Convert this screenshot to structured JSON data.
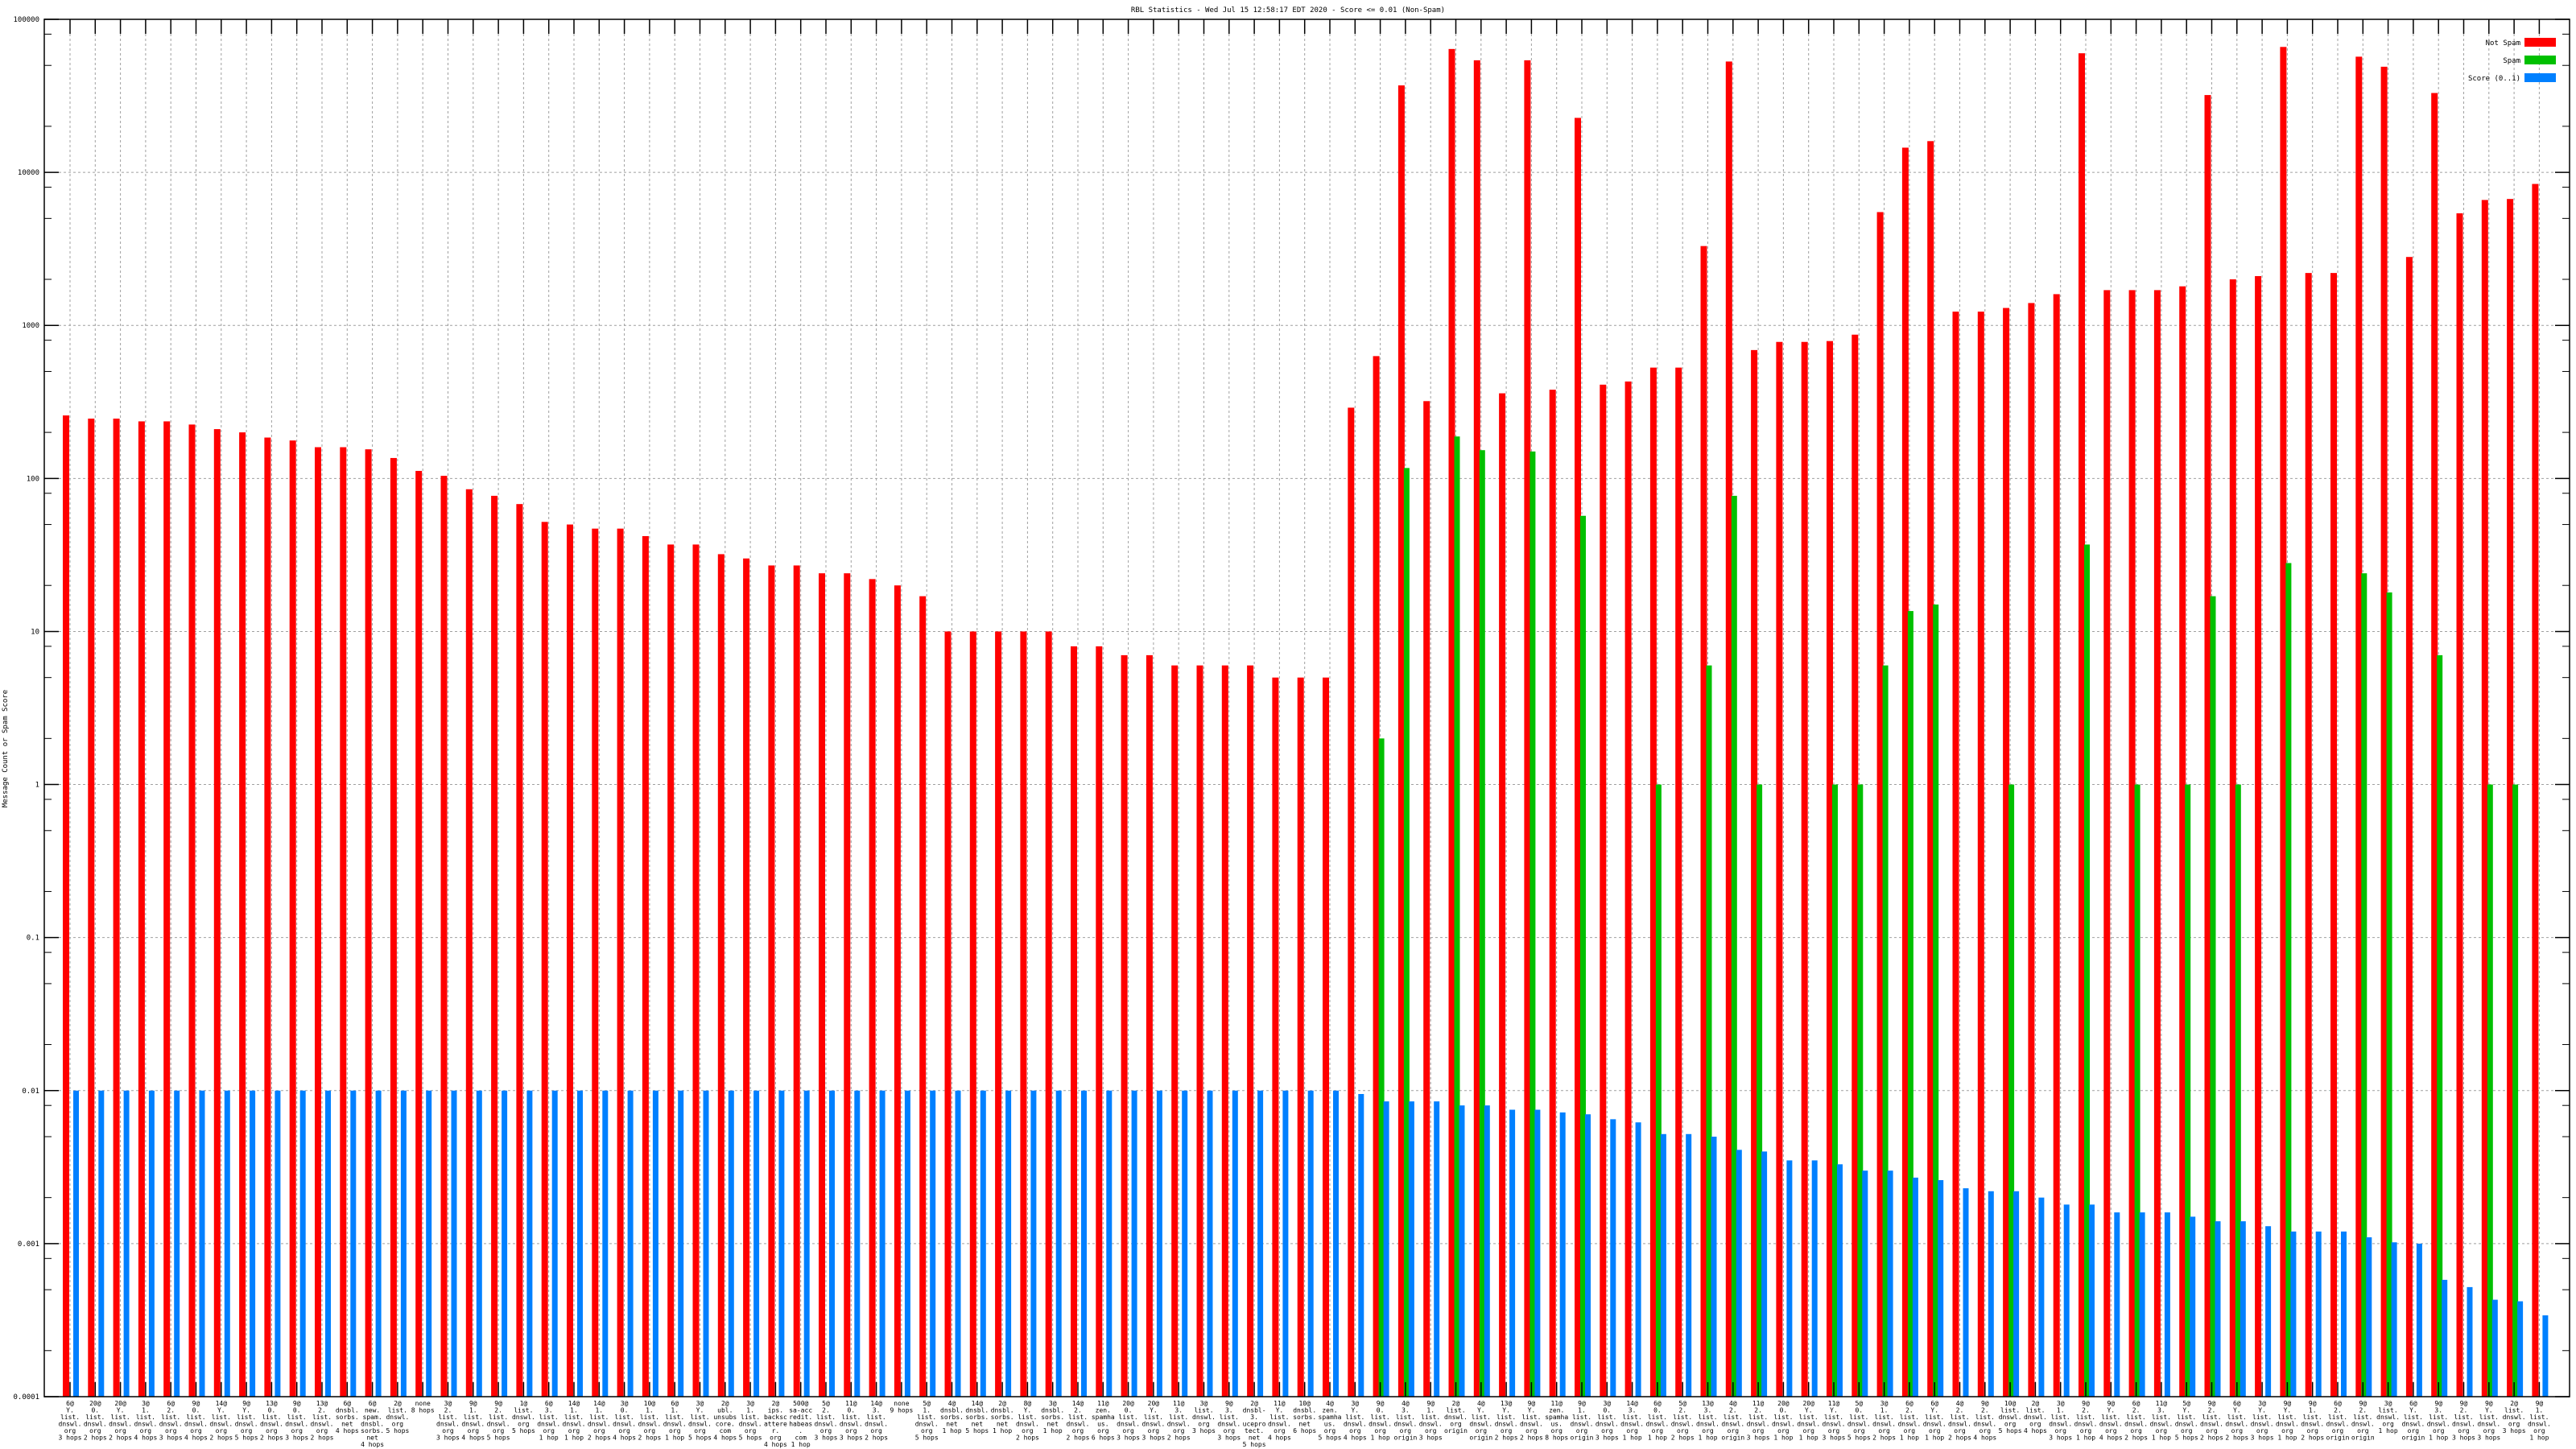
{
  "chart_data": {
    "type": "bar",
    "title": "RBL Statistics - Wed Jul 15 12:58:17 EDT 2020 - Score <= 0.01 (Non-Spam)",
    "xlabel": "",
    "ylabel": "Message Count or Spam Score",
    "yscale": "log",
    "ylim": [
      0.0001,
      100000
    ],
    "yticks": [
      "100000",
      "10000",
      "1000",
      "100",
      "10",
      "1",
      "0.1",
      "0.01",
      "0.001",
      "0.0001"
    ],
    "grid": true,
    "legend_position": "top-right",
    "colors": {
      "not_spam": "#ff0000",
      "spam": "#00c000",
      "score": "#0080ff"
    },
    "categories": [
      [
        "6@",
        "Y.",
        "list.",
        "dnswl.",
        "org",
        "3 hops"
      ],
      [
        "20@",
        "0.",
        "list.",
        "dnswl.",
        "org",
        "2 hops"
      ],
      [
        "20@",
        "Y.",
        "list.",
        "dnswl.",
        "org",
        "2 hops"
      ],
      [
        "3@",
        "1.",
        "list.",
        "dnswl.",
        "org",
        "4 hops"
      ],
      [
        "6@",
        "2.",
        "list.",
        "dnswl.",
        "org",
        "3 hops"
      ],
      [
        "9@",
        "0.",
        "list.",
        "dnswl.",
        "org",
        "4 hops"
      ],
      [
        "14@",
        "Y.",
        "list.",
        "dnswl.",
        "org",
        "2 hops"
      ],
      [
        "9@",
        "Y.",
        "list.",
        "dnswl.",
        "org",
        "5 hops"
      ],
      [
        "13@",
        "0.",
        "list.",
        "dnswl.",
        "org",
        "2 hops"
      ],
      [
        "9@",
        "0.",
        "list.",
        "dnswl.",
        "org",
        "3 hops"
      ],
      [
        "13@",
        "2.",
        "list.",
        "dnswl.",
        "org",
        "2 hops"
      ],
      [
        "6@",
        "dnsbl.",
        "sorbs.",
        "net",
        "4 hops"
      ],
      [
        "6@",
        "new.",
        "spam.",
        "dnsbl.",
        "sorbs.",
        "net",
        "4 hops"
      ],
      [
        "2@",
        "list.",
        "dnswl.",
        "org",
        "5 hops"
      ],
      [
        "none",
        "8 hops"
      ],
      [
        "3@",
        "2.",
        "list.",
        "dnswl.",
        "org",
        "3 hops"
      ],
      [
        "9@",
        "1.",
        "list.",
        "dnswl.",
        "org",
        "4 hops"
      ],
      [
        "9@",
        "2.",
        "list.",
        "dnswl.",
        "org",
        "5 hops"
      ],
      [
        "1@",
        "list.",
        "dnswl.",
        "org",
        "5 hops"
      ],
      [
        "6@",
        "3.",
        "list.",
        "dnswl.",
        "org",
        "1 hop"
      ],
      [
        "14@",
        "1.",
        "list.",
        "dnswl.",
        "org",
        "1 hop"
      ],
      [
        "14@",
        "1.",
        "list.",
        "dnswl.",
        "org",
        "2 hops"
      ],
      [
        "3@",
        "0.",
        "list.",
        "dnswl.",
        "org",
        "4 hops"
      ],
      [
        "10@",
        "1.",
        "list.",
        "dnswl.",
        "org",
        "2 hops"
      ],
      [
        "6@",
        "1.",
        "list.",
        "dnswl.",
        "org",
        "1 hop"
      ],
      [
        "3@",
        "Y.",
        "list.",
        "dnswl.",
        "org",
        "5 hops"
      ],
      [
        "2@",
        "ubl.",
        "unsubscore.",
        "com",
        "4 hops"
      ],
      [
        "3@",
        "1.",
        "list.",
        "dnswl.",
        "org",
        "5 hops"
      ],
      [
        "2@",
        "ips.",
        "backscatterer.",
        "org",
        "4 hops"
      ],
      [
        "500@",
        "sa-accredit.",
        "habeas.",
        "com",
        "1 hop"
      ],
      [
        "5@",
        "2.",
        "list.",
        "dnswl.",
        "org",
        "3 hops"
      ],
      [
        "11@",
        "0.",
        "list.",
        "dnswl.",
        "org",
        "3 hops"
      ],
      [
        "14@",
        "3.",
        "list.",
        "dnswl.",
        "org",
        "2 hops"
      ],
      [
        "none",
        "9 hops"
      ],
      [
        "5@",
        "1.",
        "list.",
        "dnswl.",
        "org",
        "5 hops"
      ],
      [
        "4@",
        "dnsbl.",
        "sorbs.",
        "net",
        "1 hop"
      ],
      [
        "14@",
        "dnsbl.",
        "sorbs.",
        "net",
        "5 hops"
      ],
      [
        "2@",
        "dnsbl.",
        "sorbs.",
        "net",
        "1 hop"
      ],
      [
        "8@",
        "Y.",
        "list.",
        "dnswl.",
        "org",
        "2 hops"
      ],
      [
        "3@",
        "dnsbl.",
        "sorbs.",
        "net",
        "1 hop"
      ],
      [
        "14@",
        "2.",
        "list.",
        "dnswl.",
        "org",
        "2 hops"
      ],
      [
        "11@",
        "zen.",
        "spamhaus.",
        "org",
        "6 hops"
      ],
      [
        "20@",
        "0.",
        "list.",
        "dnswl.",
        "org",
        "3 hops"
      ],
      [
        "20@",
        "Y.",
        "list.",
        "dnswl.",
        "org",
        "3 hops"
      ],
      [
        "11@",
        "3.",
        "list.",
        "dnswl.",
        "org",
        "2 hops"
      ],
      [
        "3@",
        "list.",
        "dnswl.",
        "org",
        "3 hops"
      ],
      [
        "9@",
        "3.",
        "list.",
        "dnswl.",
        "org",
        "3 hops"
      ],
      [
        "2@",
        "dnsbl-3.",
        "uceprotect.",
        "net",
        "5 hops"
      ],
      [
        "11@",
        "Y.",
        "list.",
        "dnswl.",
        "org",
        "4 hops"
      ],
      [
        "10@",
        "dnsbl.",
        "sorbs.",
        "net",
        "6 hops"
      ],
      [
        "4@",
        "zen.",
        "spamhaus.",
        "org",
        "5 hops"
      ],
      [
        "3@",
        "Y.",
        "list.",
        "dnswl.",
        "org",
        "4 hops"
      ],
      [
        "9@",
        "0.",
        "list.",
        "dnswl.",
        "org",
        "1 hop"
      ],
      [
        "4@",
        "3.",
        "list.",
        "dnswl.",
        "org",
        "origin"
      ],
      [
        "9@",
        "1.",
        "list.",
        "dnswl.",
        "org",
        "3 hops"
      ],
      [
        "2@",
        "list.",
        "dnswl.",
        "org",
        "origin"
      ],
      [
        "4@",
        "Y.",
        "list.",
        "dnswl.",
        "org",
        "origin"
      ],
      [
        "13@",
        "Y.",
        "list.",
        "dnswl.",
        "org",
        "2 hops"
      ],
      [
        "9@",
        "Y.",
        "list.",
        "dnswl.",
        "org",
        "2 hops"
      ],
      [
        "11@",
        "zen.",
        "spamhaus.",
        "org",
        "8 hops"
      ],
      [
        "9@",
        "1.",
        "list.",
        "dnswl.",
        "org",
        "origin"
      ],
      [
        "3@",
        "0.",
        "list.",
        "dnswl.",
        "org",
        "3 hops"
      ],
      [
        "14@",
        "3.",
        "list.",
        "dnswl.",
        "org",
        "1 hop"
      ],
      [
        "6@",
        "0.",
        "list.",
        "dnswl.",
        "org",
        "1 hop"
      ],
      [
        "5@",
        "2.",
        "list.",
        "dnswl.",
        "org",
        "2 hops"
      ],
      [
        "13@",
        "3.",
        "list.",
        "dnswl.",
        "org",
        "1 hop"
      ],
      [
        "4@",
        "2.",
        "list.",
        "dnswl.",
        "org",
        "origin"
      ],
      [
        "11@",
        "2.",
        "list.",
        "dnswl.",
        "org",
        "3 hops"
      ],
      [
        "20@",
        "0.",
        "list.",
        "dnswl.",
        "org",
        "1 hop"
      ],
      [
        "20@",
        "Y.",
        "list.",
        "dnswl.",
        "org",
        "1 hop"
      ],
      [
        "11@",
        "Y.",
        "list.",
        "dnswl.",
        "org",
        "3 hops"
      ],
      [
        "5@",
        "0.",
        "list.",
        "dnswl.",
        "org",
        "5 hops"
      ],
      [
        "3@",
        "1.",
        "list.",
        "dnswl.",
        "org",
        "2 hops"
      ],
      [
        "6@",
        "2.",
        "list.",
        "dnswl.",
        "org",
        "1 hop"
      ],
      [
        "6@",
        "Y.",
        "list.",
        "dnswl.",
        "org",
        "1 hop"
      ],
      [
        "4@",
        "2.",
        "list.",
        "dnswl.",
        "org",
        "2 hops"
      ],
      [
        "9@",
        "2.",
        "list.",
        "dnswl.",
        "org",
        "4 hops"
      ],
      [
        "10@",
        "list.",
        "dnswl.",
        "org",
        "5 hops"
      ],
      [
        "2@",
        "list.",
        "dnswl.",
        "org",
        "4 hops"
      ],
      [
        "3@",
        "1.",
        "list.",
        "dnswl.",
        "org",
        "3 hops"
      ],
      [
        "9@",
        "2.",
        "list.",
        "dnswl.",
        "org",
        "1 hop"
      ],
      [
        "9@",
        "Y.",
        "list.",
        "dnswl.",
        "org",
        "4 hops"
      ],
      [
        "6@",
        "2.",
        "list.",
        "dnswl.",
        "org",
        "2 hops"
      ],
      [
        "11@",
        "3.",
        "list.",
        "dnswl.",
        "org",
        "1 hop"
      ],
      [
        "5@",
        "Y.",
        "list.",
        "dnswl.",
        "org",
        "5 hops"
      ],
      [
        "9@",
        "2.",
        "list.",
        "dnswl.",
        "org",
        "2 hops"
      ],
      [
        "6@",
        "Y.",
        "list.",
        "dnswl.",
        "org",
        "2 hops"
      ],
      [
        "3@",
        "Y.",
        "list.",
        "dnswl.",
        "org",
        "3 hops"
      ],
      [
        "9@",
        "Y.",
        "list.",
        "dnswl.",
        "org",
        "1 hop"
      ],
      [
        "9@",
        "1.",
        "list.",
        "dnswl.",
        "org",
        "2 hops"
      ],
      [
        "6@",
        "2.",
        "list.",
        "dnswl.",
        "org",
        "origin"
      ],
      [
        "9@",
        "2.",
        "list.",
        "dnswl.",
        "org",
        "origin"
      ],
      [
        "3@",
        "list.",
        "dnswl.",
        "org",
        "1 hop"
      ],
      [
        "6@",
        "Y.",
        "list.",
        "dnswl.",
        "org",
        "origin"
      ],
      [
        "9@",
        "3.",
        "list.",
        "dnswl.",
        "org",
        "1 hop"
      ],
      [
        "9@",
        "2.",
        "list.",
        "dnswl.",
        "org",
        "3 hops"
      ],
      [
        "9@",
        "Y.",
        "list.",
        "dnswl.",
        "org",
        "3 hops"
      ],
      [
        "2@",
        "list.",
        "dnswl.",
        "org",
        "3 hops"
      ],
      [
        "9@",
        "1.",
        "list.",
        "dnswl.",
        "org",
        "1 hop"
      ]
    ],
    "series": [
      {
        "name": "Not Spam",
        "color": "#ff0000",
        "values": [
          258,
          246,
          246,
          236,
          236,
          225,
          210,
          200,
          185,
          177,
          160,
          160,
          155,
          136,
          112,
          104,
          85,
          77,
          68,
          52,
          50,
          47,
          47,
          42,
          37,
          37,
          32,
          30,
          27,
          27,
          24,
          24,
          22,
          20,
          17,
          10,
          10,
          10,
          10,
          10,
          8,
          8,
          7,
          7,
          6,
          6,
          6,
          6,
          5,
          5,
          5,
          290,
          630,
          37000,
          320,
          64000,
          54000,
          360,
          54000,
          380,
          22700,
          410,
          430,
          530,
          530,
          3300,
          53000,
          690,
          780,
          780,
          790,
          870,
          5500,
          14500,
          16000,
          1230,
          1230,
          1300,
          1400,
          1600,
          60000,
          1700,
          1700,
          1700,
          1800,
          32000,
          2000,
          2100,
          66000,
          2200,
          2200,
          57000,
          49000,
          2800,
          33000,
          5400,
          6600,
          6700,
          8400
        ]
      },
      {
        "name": "Spam",
        "color": "#00c000",
        "values": [
          0,
          0,
          0,
          0,
          0,
          0,
          0,
          0,
          0,
          0,
          0,
          0,
          0,
          0,
          0,
          0,
          0,
          0,
          0,
          0,
          0,
          0,
          0,
          0,
          0,
          0,
          0,
          0,
          0,
          0,
          0,
          0,
          0,
          0,
          0,
          0,
          0,
          0,
          0,
          0,
          0,
          0,
          0,
          0,
          0,
          0,
          0,
          0,
          0,
          0,
          0,
          0,
          2,
          117,
          0,
          188,
          153,
          0,
          150,
          0,
          57,
          0,
          0,
          1,
          0,
          6,
          77,
          1,
          0,
          0,
          1,
          1,
          6,
          13.6,
          15,
          0,
          0,
          1,
          0,
          0,
          37,
          0,
          1,
          0,
          1,
          17,
          1,
          0,
          28,
          0,
          0,
          24,
          18,
          0,
          7,
          0,
          1,
          1,
          0
        ]
      },
      {
        "name": "Score (0..1)",
        "color": "#0080ff",
        "values": [
          0.01,
          0.01,
          0.01,
          0.01,
          0.01,
          0.01,
          0.01,
          0.01,
          0.01,
          0.01,
          0.01,
          0.01,
          0.01,
          0.01,
          0.01,
          0.01,
          0.01,
          0.01,
          0.01,
          0.01,
          0.01,
          0.01,
          0.01,
          0.01,
          0.01,
          0.01,
          0.01,
          0.01,
          0.01,
          0.01,
          0.01,
          0.01,
          0.01,
          0.01,
          0.01,
          0.01,
          0.01,
          0.01,
          0.01,
          0.01,
          0.01,
          0.01,
          0.01,
          0.01,
          0.01,
          0.01,
          0.01,
          0.01,
          0.01,
          0.01,
          0.01,
          0.0095,
          0.0085,
          0.0085,
          0.0085,
          0.008,
          0.008,
          0.0075,
          0.0075,
          0.0072,
          0.007,
          0.0065,
          0.0062,
          0.0052,
          0.0052,
          0.005,
          0.0041,
          0.004,
          0.0035,
          0.0035,
          0.0033,
          0.003,
          0.003,
          0.0027,
          0.0026,
          0.0023,
          0.0022,
          0.0022,
          0.002,
          0.0018,
          0.0018,
          0.0016,
          0.0016,
          0.0016,
          0.0015,
          0.0014,
          0.0014,
          0.0013,
          0.0012,
          0.0012,
          0.0012,
          0.0011,
          0.00102,
          0.001,
          0.00058,
          0.00052,
          0.00043,
          0.00042,
          0.00034
        ]
      }
    ]
  }
}
